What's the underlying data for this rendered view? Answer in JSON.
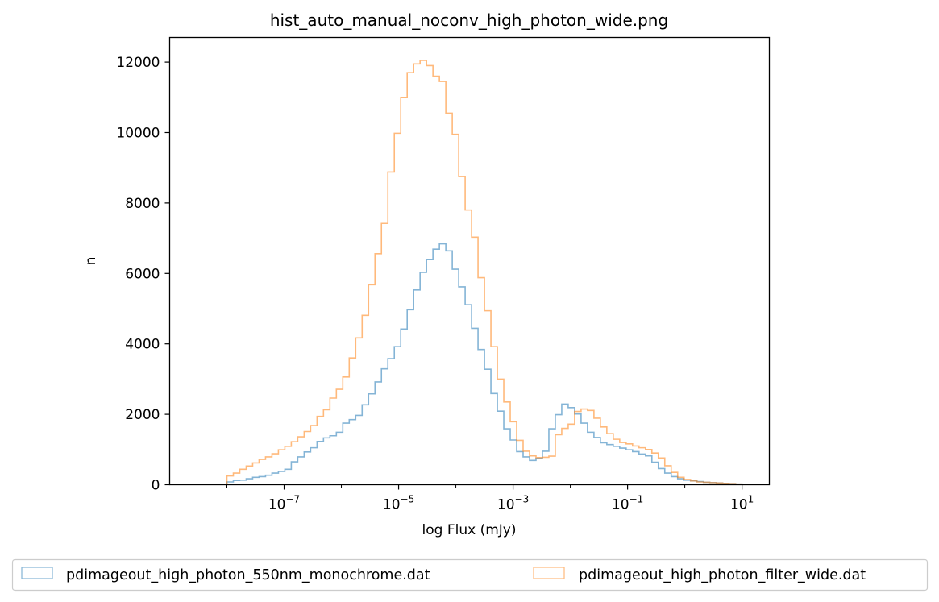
{
  "chart_data": {
    "type": "step-histogram",
    "title": "hist_auto_manual_noconv_high_photon_wide.png",
    "xlabel": "log Flux (mJy)",
    "ylabel": "n",
    "xscale": "log",
    "xlim": [
      1e-09,
      30
    ],
    "ylim": [
      0,
      12700
    ],
    "x_ticks": [
      {
        "value": 1e-07,
        "base": "10",
        "exp": "−7"
      },
      {
        "value": 1e-05,
        "base": "10",
        "exp": "−5"
      },
      {
        "value": 0.001,
        "base": "10",
        "exp": "−3"
      },
      {
        "value": 0.1,
        "base": "10",
        "exp": "−1"
      },
      {
        "value": 10,
        "base": "10",
        "exp": "1"
      }
    ],
    "y_ticks": [
      0,
      2000,
      4000,
      6000,
      8000,
      10000,
      12000
    ],
    "y_tick_labels": [
      "0",
      "2000",
      "4000",
      "6000",
      "8000",
      "10000",
      "12000"
    ],
    "grid": false,
    "legend_position": "below",
    "bins": {
      "log10_min": -8,
      "log10_max": 1,
      "count": 80
    },
    "series": [
      {
        "name": "pdimageout_high_photon_550nm_monochrome.dat",
        "color": "#1f77b4",
        "values": [
          80,
          120,
          130,
          170,
          210,
          230,
          270,
          330,
          380,
          440,
          650,
          790,
          930,
          1050,
          1230,
          1330,
          1390,
          1490,
          1750,
          1850,
          1970,
          2270,
          2580,
          2920,
          3290,
          3580,
          3920,
          4420,
          4970,
          5530,
          6030,
          6390,
          6690,
          6840,
          6640,
          6120,
          5620,
          5110,
          4440,
          3840,
          3280,
          2590,
          2090,
          1590,
          1270,
          940,
          790,
          690,
          750,
          950,
          1590,
          1990,
          2290,
          2190,
          2010,
          1750,
          1490,
          1340,
          1190,
          1140,
          1090,
          1040,
          990,
          940,
          870,
          820,
          640,
          460,
          330,
          230,
          170,
          130,
          110,
          90,
          70,
          60,
          50,
          40,
          30,
          20
        ]
      },
      {
        "name": "pdimageout_high_photon_filter_wide.dat",
        "color": "#ff7f0e",
        "values": [
          250,
          330,
          440,
          530,
          620,
          720,
          790,
          880,
          990,
          1090,
          1220,
          1360,
          1510,
          1680,
          1940,
          2130,
          2460,
          2710,
          3060,
          3600,
          4170,
          4810,
          5680,
          6560,
          7420,
          8880,
          9980,
          11000,
          11700,
          11950,
          12050,
          11900,
          11600,
          11450,
          10550,
          9950,
          8750,
          7800,
          7030,
          5880,
          4940,
          3920,
          3000,
          2350,
          1790,
          1260,
          950,
          820,
          770,
          780,
          810,
          1420,
          1600,
          1720,
          2080,
          2150,
          2110,
          1890,
          1640,
          1450,
          1290,
          1200,
          1160,
          1100,
          1050,
          1000,
          900,
          760,
          540,
          350,
          210,
          150,
          110,
          80,
          70,
          60,
          50,
          40,
          30,
          20
        ]
      }
    ]
  }
}
